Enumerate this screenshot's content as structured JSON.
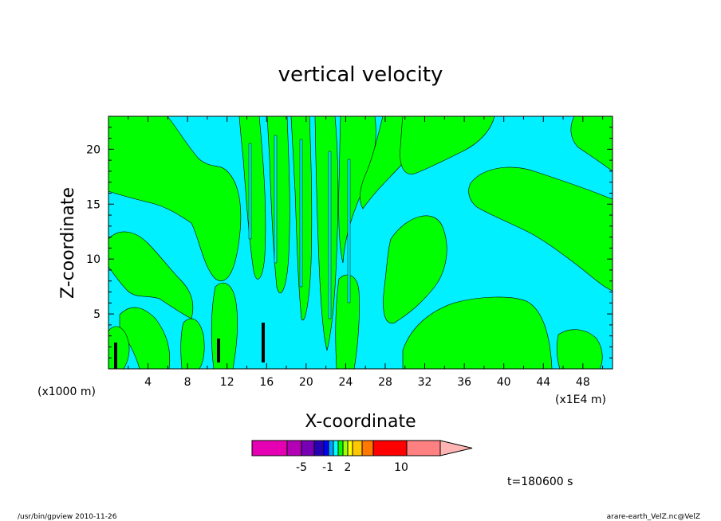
{
  "chart_data": {
    "type": "heatmap",
    "title": "vertical velocity",
    "xlabel": "X-coordinate",
    "ylabel": "Z-coordinate",
    "x_unit_left": "(x1000 m)",
    "x_unit_right": "(x1E4 m)",
    "x_ticks": [
      "4",
      "8",
      "12",
      "16",
      "20",
      "24",
      "28",
      "32",
      "36",
      "40",
      "44",
      "48"
    ],
    "y_ticks": [
      "5",
      "10",
      "15",
      "20"
    ],
    "xlim": [
      0,
      51
    ],
    "ylim": [
      0,
      23
    ],
    "colorbar": {
      "colors": [
        "#e600b4",
        "#b400b4",
        "#7800b4",
        "#2800b4",
        "#0000ff",
        "#00a0ff",
        "#00ffff",
        "#00ff00",
        "#a0ff00",
        "#ffff00",
        "#ffc800",
        "#ff7800",
        "#ff0000",
        "#ff8080",
        "#ffb4b4"
      ],
      "labels": [
        "-5",
        "-1",
        "2",
        "10"
      ]
    },
    "fill_colors": {
      "negative": "#00f0ff",
      "positive": "#00ff00",
      "strong": "#000000"
    },
    "time_label": "t=180600 s"
  },
  "footer": {
    "left": "/usr/bin/gpview   2010-11-26",
    "right": "arare-earth_VelZ.nc@VelZ"
  }
}
